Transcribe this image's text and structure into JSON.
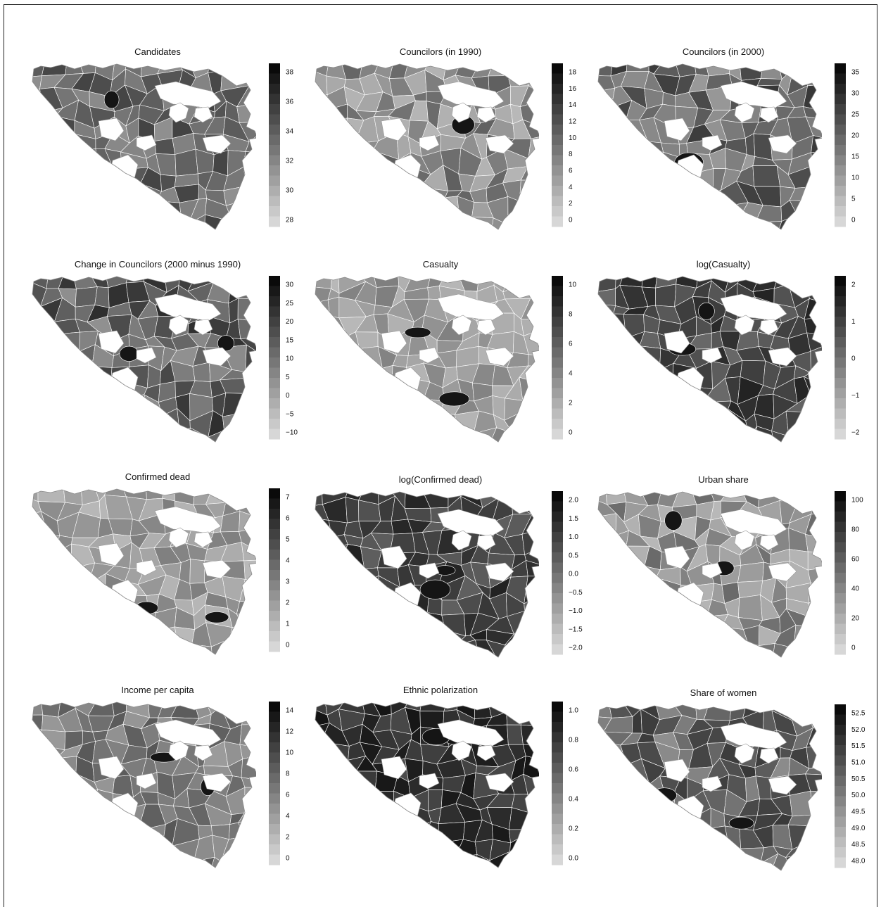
{
  "figure": {
    "panels": [
      {
        "id": "candidates",
        "title": "Candidates",
        "legend": {
          "ticks": [
            "28",
            "30",
            "32",
            "34",
            "36",
            "38"
          ]
        }
      },
      {
        "id": "councilors-1990",
        "title": "Councilors (in 1990)",
        "legend": {
          "ticks": [
            "0",
            "2",
            "4",
            "6",
            "8",
            "10",
            "12",
            "14",
            "16",
            "18"
          ]
        }
      },
      {
        "id": "councilors-2000",
        "title": "Councilors (in 2000)",
        "legend": {
          "ticks": [
            "0",
            "5",
            "10",
            "15",
            "20",
            "25",
            "30",
            "35"
          ]
        }
      },
      {
        "id": "change-in-councilors",
        "title": "Change in Councilors (2000 minus 1990)",
        "legend": {
          "ticks": [
            "−10",
            "−5",
            "0",
            "5",
            "10",
            "15",
            "20",
            "25",
            "30"
          ]
        }
      },
      {
        "id": "casualty",
        "title": "Casualty",
        "legend": {
          "ticks": [
            "0",
            "2",
            "4",
            "6",
            "8",
            "10"
          ]
        }
      },
      {
        "id": "log-casualty",
        "title": "log(Casualty)",
        "legend": {
          "ticks": [
            "−2",
            "−1",
            "0",
            "1",
            "2"
          ]
        }
      },
      {
        "id": "confirmed-dead",
        "title": "Confirmed dead",
        "legend": {
          "ticks": [
            "0",
            "1",
            "2",
            "3",
            "4",
            "5",
            "6",
            "7"
          ]
        }
      },
      {
        "id": "log-confirmed-dead",
        "title": "log(Confirmed dead)",
        "legend": {
          "ticks": [
            "−2.0",
            "−1.5",
            "−1.0",
            "−0.5",
            "0.0",
            "0.5",
            "1.0",
            "1.5",
            "2.0"
          ]
        }
      },
      {
        "id": "urban-share",
        "title": "Urban share",
        "legend": {
          "ticks": [
            "0",
            "20",
            "40",
            "60",
            "80",
            "100"
          ]
        }
      },
      {
        "id": "income-per-capita",
        "title": "Income per capita",
        "legend": {
          "ticks": [
            "0",
            "2",
            "4",
            "6",
            "8",
            "10",
            "12",
            "14"
          ]
        }
      },
      {
        "id": "ethnic-polarization",
        "title": "Ethnic polarization",
        "legend": {
          "ticks": [
            "0.0",
            "0.2",
            "0.4",
            "0.6",
            "0.8",
            "1.0"
          ]
        }
      },
      {
        "id": "share-of-women",
        "title": "Share of women",
        "legend": {
          "ticks": [
            "48.0",
            "48.5",
            "49.0",
            "49.5",
            "50.0",
            "50.5",
            "51.0",
            "51.5",
            "52.0",
            "52.5"
          ]
        }
      }
    ]
  }
}
